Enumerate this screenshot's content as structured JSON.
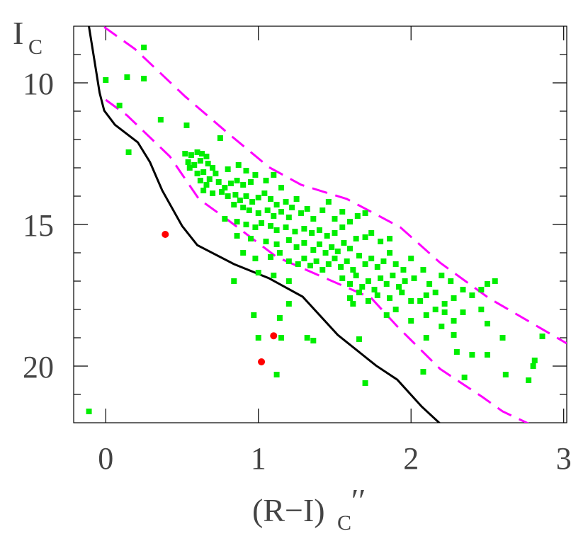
{
  "chart_data": {
    "type": "scatter",
    "xlim": [
      -0.21,
      3.02
    ],
    "ylim": [
      8,
      22
    ],
    "y_inverted": true,
    "xticks": [
      0,
      1,
      2,
      3
    ],
    "yticks": [
      10,
      15,
      20
    ],
    "yminorticks": [
      9,
      11,
      12,
      13,
      14,
      16,
      17,
      18,
      19,
      21
    ],
    "x_label": {
      "main": "(R−I)",
      "sub": "C",
      "sup": "′′"
    },
    "y_label": {
      "main": "I",
      "sub": "C"
    },
    "lines": [
      {
        "color": "#000000",
        "dash": false,
        "x": [
          -0.11,
          -0.07,
          -0.04,
          -0.01,
          0.06,
          0.21,
          0.29,
          0.37,
          0.5,
          0.6,
          0.84,
          1.07,
          1.29,
          1.52,
          1.77,
          1.91,
          2.07,
          2.19
        ],
        "y": [
          8.0,
          9.35,
          10.35,
          10.98,
          11.48,
          12.1,
          12.8,
          13.8,
          15.05,
          15.73,
          16.4,
          16.9,
          17.55,
          18.9,
          19.98,
          20.48,
          21.43,
          22.03
        ]
      },
      {
        "color": "#ff00ff",
        "dash": true,
        "x": [
          -0.01,
          0.19,
          0.52,
          0.79,
          1.07,
          1.28,
          1.58,
          1.93,
          2.19,
          2.51,
          3.02
        ],
        "y": [
          8.03,
          8.8,
          10.48,
          11.73,
          12.98,
          13.6,
          14.1,
          15.1,
          16.35,
          17.6,
          19.2
        ]
      },
      {
        "color": "#ff00ff",
        "dash": true,
        "x": [
          0,
          0.14,
          0.42,
          0.61,
          0.79,
          1.12,
          1.42,
          1.74,
          1.91,
          2.19,
          2.47,
          2.6,
          2.77
        ],
        "y": [
          10.6,
          11.15,
          12.6,
          14.1,
          14.8,
          16.15,
          16.85,
          17.6,
          18.6,
          20.1,
          21.1,
          21.6,
          22.03
        ]
      }
    ],
    "points": [
      {
        "color": "#00ee00",
        "shape": "square",
        "x": [
          -0.11,
          0,
          0.14,
          0.25,
          0.25,
          0.09,
          0.36,
          0.53,
          0.15,
          0.75,
          0.52,
          0.56,
          0.6,
          0.63,
          0.66,
          0.54,
          0.58,
          0.62,
          0.67,
          0.55,
          0.6,
          0.64,
          0.7,
          0.72,
          0.8,
          0.87,
          0.92,
          0.62,
          0.66,
          0.68,
          0.74,
          0.78,
          0.82,
          0.86,
          0.9,
          0.95,
          0.98,
          1.05,
          1.1,
          1.15,
          0.64,
          0.7,
          0.76,
          0.8,
          0.85,
          0.88,
          0.92,
          0.96,
          1.0,
          1.04,
          1.08,
          1.12,
          1.18,
          1.22,
          1.25,
          0.84,
          0.9,
          0.94,
          1.0,
          1.06,
          1.1,
          1.15,
          1.2,
          1.28,
          1.32,
          1.36,
          1.42,
          1.46,
          1.55,
          0.78,
          0.86,
          0.92,
          0.98,
          1.02,
          1.08,
          1.12,
          1.18,
          1.24,
          1.3,
          1.35,
          1.4,
          1.45,
          1.5,
          1.55,
          1.6,
          1.65,
          1.7,
          1.5,
          0.86,
          0.95,
          1.05,
          1.12,
          1.2,
          1.25,
          1.3,
          1.36,
          1.4,
          1.44,
          1.48,
          1.52,
          1.56,
          1.6,
          1.64,
          1.7,
          1.74,
          1.8,
          1.86,
          0.9,
          0.98,
          1.08,
          1.14,
          1.2,
          1.26,
          1.3,
          1.34,
          1.38,
          1.42,
          1.46,
          1.5,
          1.54,
          1.58,
          1.62,
          1.66,
          1.7,
          1.74,
          1.78,
          1.82,
          1.86,
          1.9,
          1.95,
          2.0,
          1.0,
          1.1,
          1.2,
          1.55,
          1.6,
          1.64,
          1.68,
          1.72,
          1.76,
          1.8,
          1.84,
          1.88,
          1.92,
          1.96,
          2.02,
          2.08,
          2.12,
          2.2,
          2.26,
          1.6,
          1.66,
          1.72,
          1.78,
          1.86,
          1.94,
          2.0,
          2.06,
          2.1,
          2.16,
          2.22,
          2.28,
          2.34,
          2.4,
          2.46,
          2.5,
          2.55,
          2.1,
          2.16,
          2.22,
          2.28,
          2.34,
          2.46,
          2.5,
          2.2,
          2.28,
          2.1,
          2.0,
          1.84,
          1.9,
          1.62,
          0.84,
          0.97,
          1.14,
          1.2,
          1.0,
          1.15,
          1.32,
          1.36,
          1.66,
          2.3,
          2.4,
          2.5,
          2.08,
          2.35,
          2.6,
          2.62,
          2.8,
          2.81,
          2.86,
          2.77,
          1.12,
          1.7
        ],
        "y": [
          21.6,
          9.9,
          9.8,
          9.85,
          8.75,
          10.8,
          11.3,
          11.5,
          12.45,
          11.95,
          12.5,
          12.55,
          12.45,
          12.5,
          12.6,
          12.8,
          12.9,
          12.75,
          12.85,
          13.0,
          13.2,
          13.15,
          13.0,
          13.2,
          13.05,
          12.9,
          13.1,
          13.45,
          13.6,
          13.4,
          13.5,
          13.7,
          13.55,
          13.45,
          13.6,
          13.5,
          13.25,
          13.45,
          13.25,
          13.7,
          13.8,
          13.9,
          13.85,
          14.0,
          13.95,
          14.15,
          14.0,
          14.2,
          14.05,
          13.9,
          14.1,
          14.3,
          14.2,
          14.4,
          14.1,
          14.3,
          14.4,
          14.5,
          14.6,
          14.5,
          14.7,
          14.55,
          14.75,
          14.6,
          14.45,
          14.8,
          14.5,
          14.2,
          14.55,
          14.8,
          14.9,
          15.0,
          15.1,
          14.95,
          15.05,
          15.2,
          15.1,
          15.25,
          15.15,
          15.3,
          15.2,
          15.4,
          15.3,
          15.1,
          14.9,
          14.7,
          14.6,
          14.8,
          15.4,
          15.5,
          15.6,
          15.7,
          15.55,
          15.8,
          15.65,
          15.9,
          15.7,
          16.0,
          15.8,
          15.95,
          15.65,
          15.85,
          15.5,
          15.45,
          15.3,
          15.6,
          15.5,
          16.0,
          16.2,
          16.15,
          16.0,
          16.3,
          16.4,
          16.2,
          16.45,
          16.3,
          16.6,
          16.4,
          16.2,
          16.5,
          16.3,
          16.6,
          16.1,
          16.4,
          16.2,
          16.5,
          16.3,
          16.0,
          16.4,
          16.6,
          16.2,
          16.7,
          16.8,
          17.0,
          16.9,
          17.1,
          16.8,
          17.2,
          17.0,
          17.3,
          16.9,
          17.1,
          16.8,
          17.2,
          17.0,
          16.9,
          16.6,
          17.1,
          16.8,
          17.0,
          17.6,
          17.4,
          17.7,
          17.5,
          17.6,
          17.4,
          17.7,
          17.7,
          17.5,
          17.4,
          17.8,
          17.6,
          17.3,
          17.5,
          17.3,
          17.1,
          17.0,
          18.2,
          18.0,
          18.1,
          18.4,
          18.1,
          18.0,
          18.5,
          18.6,
          18.9,
          19.0,
          18.4,
          18.2,
          18.0,
          17.8,
          17.0,
          18.2,
          18.3,
          17.8,
          19.0,
          19.0,
          19.0,
          19.1,
          19.05,
          19.5,
          19.6,
          19.6,
          20.2,
          20.4,
          19.0,
          20.3,
          20.0,
          19.8,
          18.95,
          20.5,
          20.3,
          20.6
        ]
      },
      {
        "color": "#ff0000",
        "shape": "circle",
        "x": [
          0.39,
          1.1,
          1.02
        ],
        "y": [
          15.35,
          18.93,
          19.85
        ]
      }
    ]
  }
}
